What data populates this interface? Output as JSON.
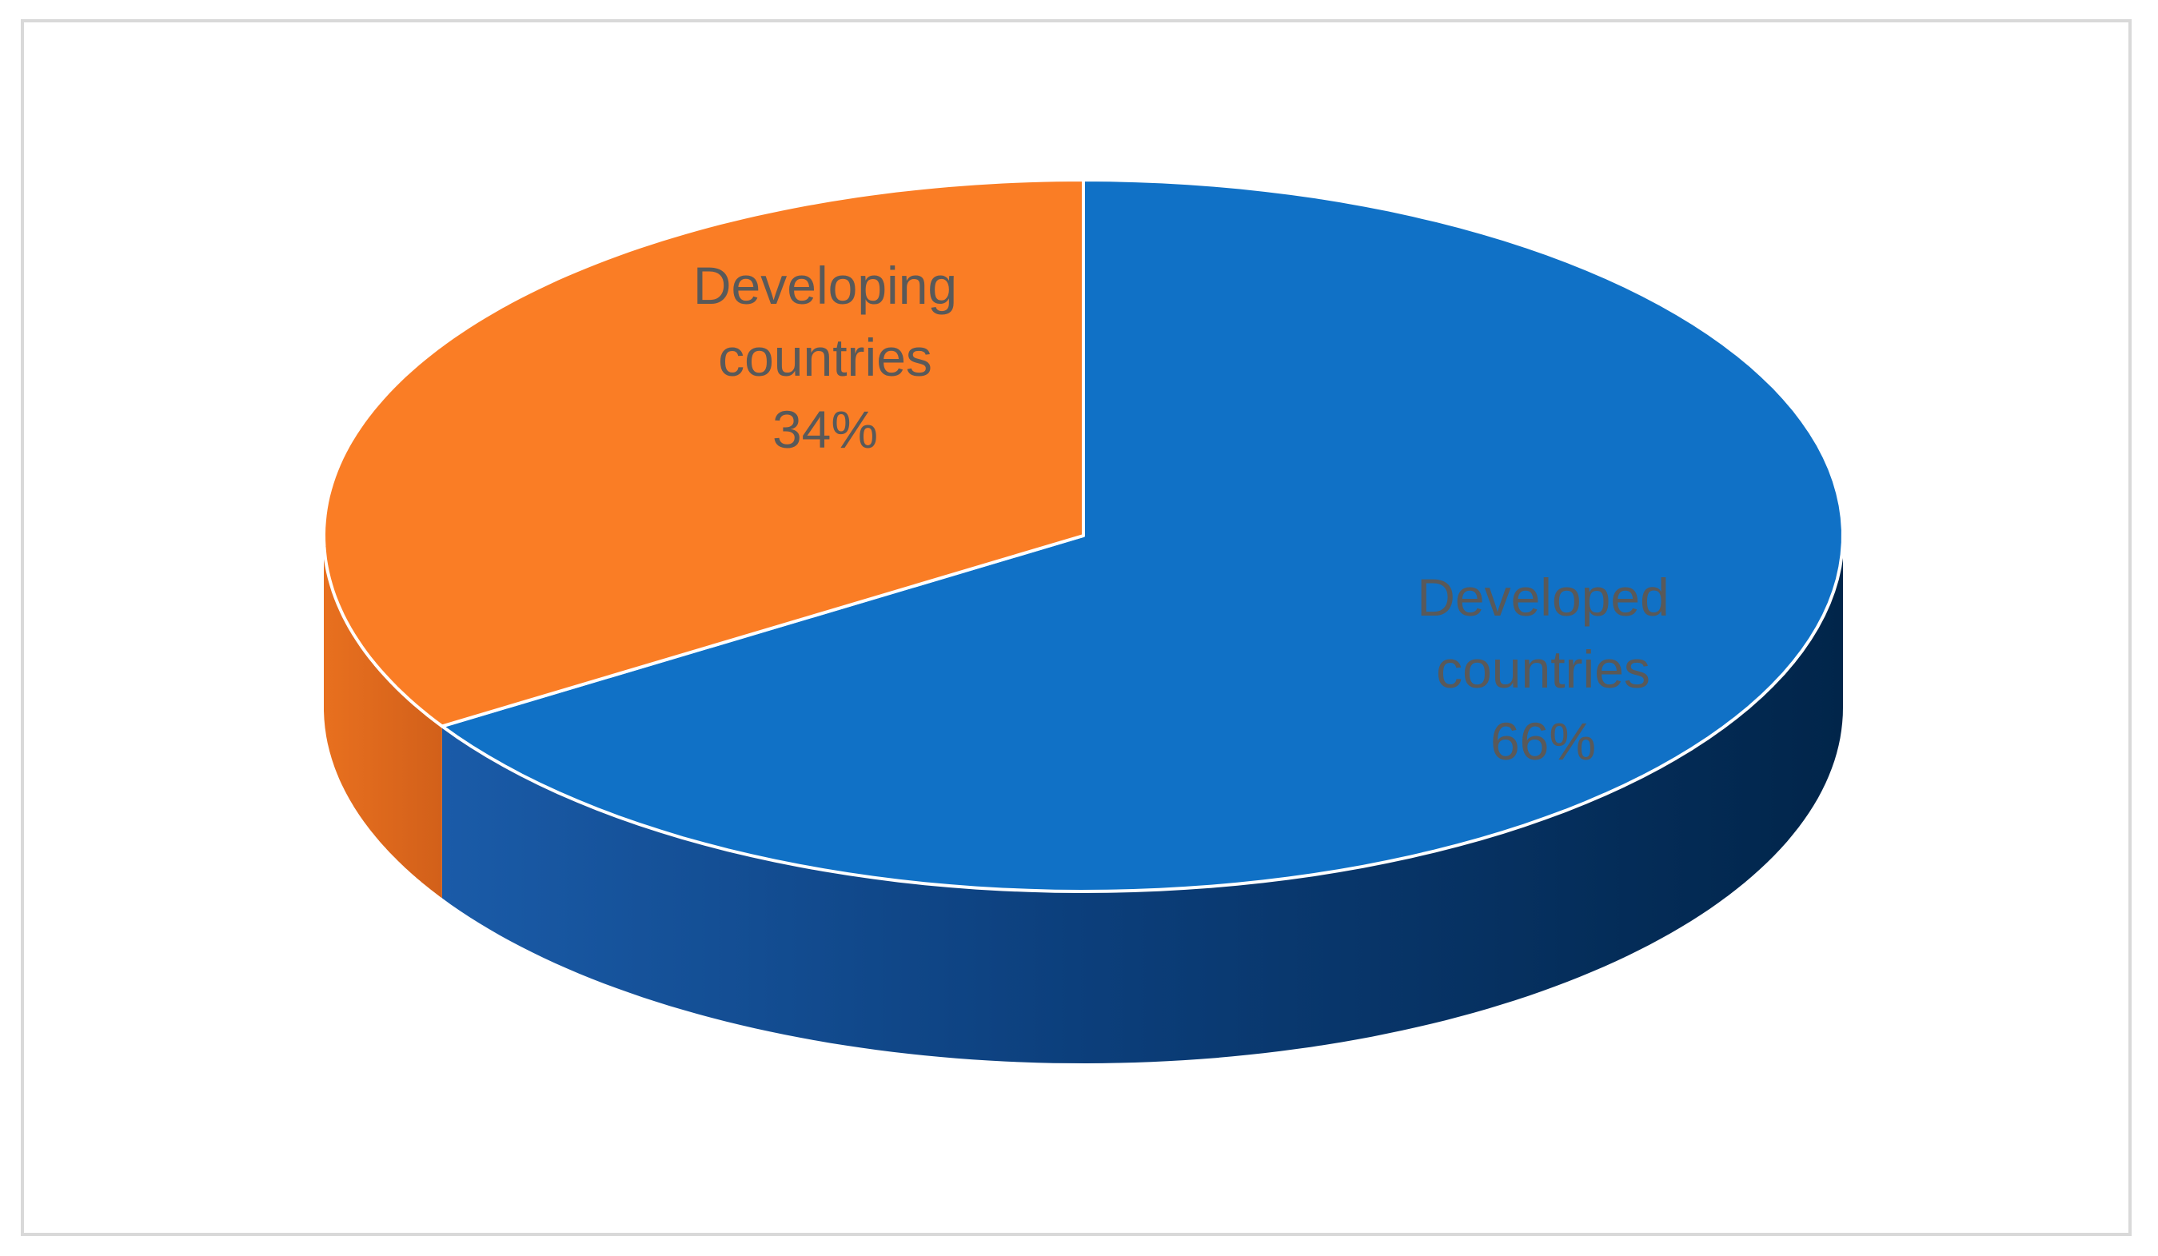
{
  "chart_data": {
    "type": "pie",
    "style": "3d",
    "title": "",
    "slices": [
      {
        "label": "Developing countries",
        "percent": 34,
        "display": "34%",
        "color": "#fa7d25",
        "side_color": "#e46a1c",
        "line1": "Developing",
        "line2": "countries"
      },
      {
        "label": "Developed countries",
        "percent": 66,
        "display": "66%",
        "color": "#1071c6",
        "side_color": "#0f4a8c",
        "line1": "Developed",
        "line2": "countries"
      }
    ],
    "legend": "none",
    "data_labels": "inside"
  }
}
